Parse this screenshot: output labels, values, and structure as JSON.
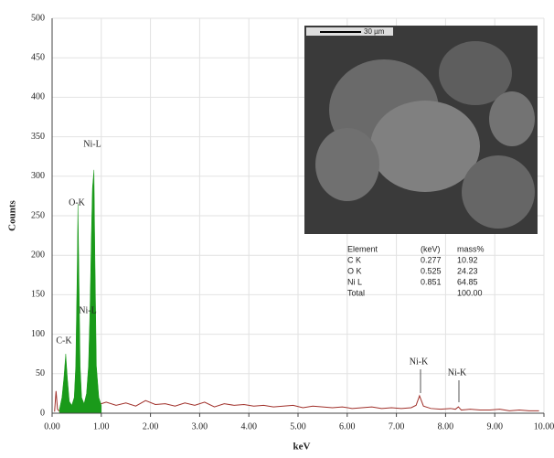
{
  "chart_data": {
    "type": "spectrum",
    "xlabel": "keV",
    "ylabel": "Counts",
    "xlim": [
      0,
      10
    ],
    "ylim": [
      0,
      500
    ],
    "xticks": [
      {
        "value": 0,
        "label": "0.00"
      },
      {
        "value": 1,
        "label": "1.00"
      },
      {
        "value": 2,
        "label": "2.00"
      },
      {
        "value": 3,
        "label": "3.00"
      },
      {
        "value": 4,
        "label": "4.00"
      },
      {
        "value": 5,
        "label": "5.00"
      },
      {
        "value": 6,
        "label": "6.00"
      },
      {
        "value": 7,
        "label": "7.00"
      },
      {
        "value": 8,
        "label": "8.00"
      },
      {
        "value": 9,
        "label": "9.00"
      },
      {
        "value": 10,
        "label": "10.00"
      }
    ],
    "yticks": [
      0,
      50,
      100,
      150,
      200,
      250,
      300,
      350,
      400,
      450,
      500
    ],
    "grid": true,
    "series": [
      {
        "kind": "line",
        "color": "#a0302a",
        "x": [
          0.05,
          0.08,
          0.11,
          0.14,
          1.0,
          1.1,
          1.3,
          1.5,
          1.7,
          1.9,
          2.1,
          2.3,
          2.5,
          2.7,
          2.9,
          3.1,
          3.3,
          3.5,
          3.7,
          3.9,
          4.1,
          4.3,
          4.5,
          4.7,
          4.9,
          5.1,
          5.3,
          5.5,
          5.7,
          5.9,
          6.1,
          6.3,
          6.5,
          6.7,
          6.9,
          7.1,
          7.3,
          7.4,
          7.47,
          7.55,
          7.7,
          7.9,
          8.1,
          8.2,
          8.26,
          8.32,
          8.5,
          8.7,
          8.9,
          9.1,
          9.3,
          9.5,
          9.7,
          9.9
        ],
        "values": [
          2,
          28,
          5,
          3,
          12,
          14,
          10,
          13,
          9,
          16,
          11,
          12,
          9,
          13,
          10,
          14,
          8,
          12,
          10,
          11,
          9,
          10,
          8,
          9,
          10,
          7,
          9,
          8,
          7,
          8,
          6,
          7,
          8,
          6,
          7,
          6,
          7,
          10,
          22,
          9,
          6,
          5,
          6,
          5,
          8,
          4,
          5,
          4,
          4,
          5,
          3,
          4,
          3,
          3
        ]
      },
      {
        "kind": "area",
        "color": "#1a9a1a",
        "x": [
          0.15,
          0.2,
          0.24,
          0.277,
          0.31,
          0.35,
          0.4,
          0.45,
          0.48,
          0.51,
          0.525,
          0.54,
          0.57,
          0.6,
          0.65,
          0.7,
          0.74,
          0.77,
          0.8,
          0.82,
          0.851,
          0.87,
          0.9,
          0.95,
          1.0
        ],
        "values": [
          5,
          20,
          45,
          75,
          45,
          15,
          10,
          20,
          60,
          180,
          265,
          200,
          60,
          20,
          12,
          25,
          60,
          130,
          230,
          285,
          308,
          200,
          60,
          20,
          10
        ]
      }
    ],
    "annotations": [
      "C-K",
      "O-K",
      "Ni-L",
      "Ni-L",
      "Ni-K",
      "Ni-K"
    ],
    "inset": {
      "scale_bar": "30 µm",
      "table": {
        "header": [
          "Element",
          "(keV)",
          "mass%"
        ],
        "rows": [
          [
            "C  K",
            "0.277",
            "10.92"
          ],
          [
            "O  K",
            "0.525",
            "24.23"
          ],
          [
            "Ni L",
            "0.851",
            "64.85"
          ],
          [
            "Total",
            "",
            "100.00"
          ]
        ]
      }
    }
  }
}
